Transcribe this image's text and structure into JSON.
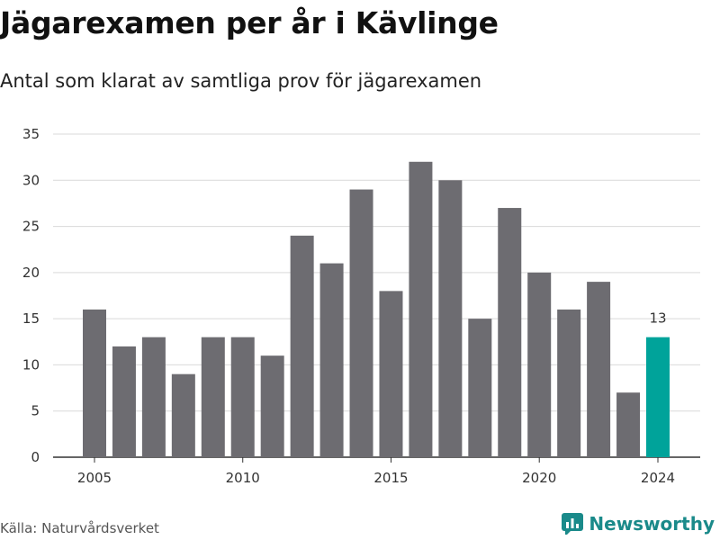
{
  "title": "Jägarexamen per år i Kävlinge",
  "subtitle": "Antal som klarat av samtliga prov för jägarexamen",
  "source": "Källa: Naturvårdsverket",
  "brand": "Newsworthy",
  "colors": {
    "bar": "#6d6c71",
    "highlight": "#00a39a",
    "grid": "#d9d9d9",
    "axis": "#333333",
    "brand": "#1a8a8a"
  },
  "chart_data": {
    "type": "bar",
    "categories": [
      "2005",
      "2006",
      "2007",
      "2008",
      "2009",
      "2010",
      "2011",
      "2012",
      "2013",
      "2014",
      "2015",
      "2016",
      "2017",
      "2018",
      "2019",
      "2020",
      "2021",
      "2022",
      "2023",
      "2024"
    ],
    "values": [
      16,
      12,
      13,
      9,
      13,
      13,
      11,
      24,
      21,
      29,
      18,
      32,
      30,
      15,
      27,
      20,
      16,
      19,
      7,
      13
    ],
    "highlight_category": "2024",
    "data_labels": [
      {
        "category": "2024",
        "text": "13"
      }
    ],
    "x_ticks": [
      "2005",
      "2010",
      "2015",
      "2020",
      "2024"
    ],
    "y_ticks": [
      0,
      5,
      10,
      15,
      20,
      25,
      30,
      35
    ],
    "ylim": [
      0,
      35
    ],
    "xlabel": "",
    "ylabel": "",
    "grid": true,
    "legend": false
  }
}
